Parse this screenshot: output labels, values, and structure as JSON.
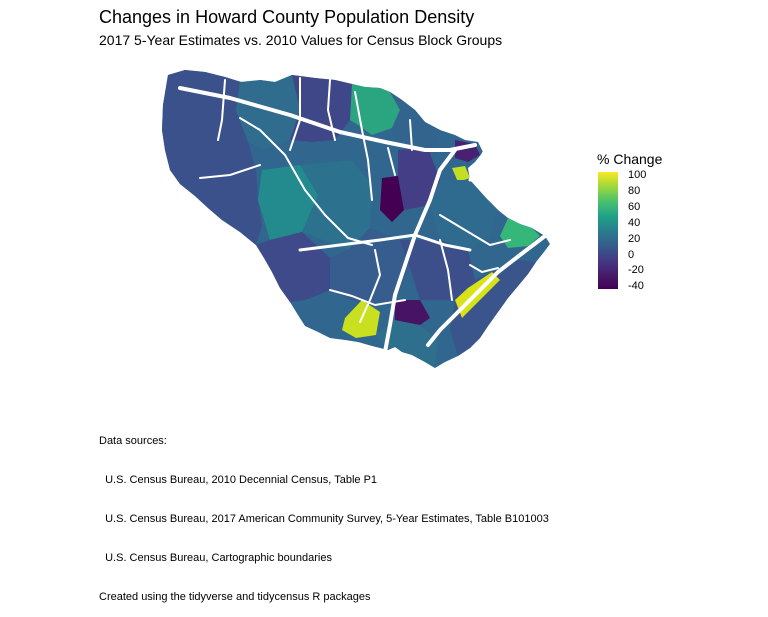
{
  "title": "Changes in Howard County Population Density",
  "subtitle": "2017 5-Year Estimates vs. 2010 Values for Census Block Groups",
  "legend": {
    "title": "% Change",
    "ticks": [
      "100",
      "80",
      "60",
      "40",
      "20",
      "0",
      "-20",
      "-40"
    ],
    "range": [
      -45,
      105
    ],
    "palette": "viridis"
  },
  "colors": {
    "low": "#440154",
    "mid": "#277f8e",
    "high": "#fde725",
    "roads": "#ffffff"
  },
  "caption": [
    "Data sources:",
    "  U.S. Census Bureau, 2010 Decennial Census, Table P1",
    "  U.S. Census Bureau, 2017 American Community Survey, 5-Year Estimates, Table B101003",
    "  U.S. Census Bureau, Cartographic boundaries",
    "Created using the tidyverse and tidycensus R packages"
  ]
}
